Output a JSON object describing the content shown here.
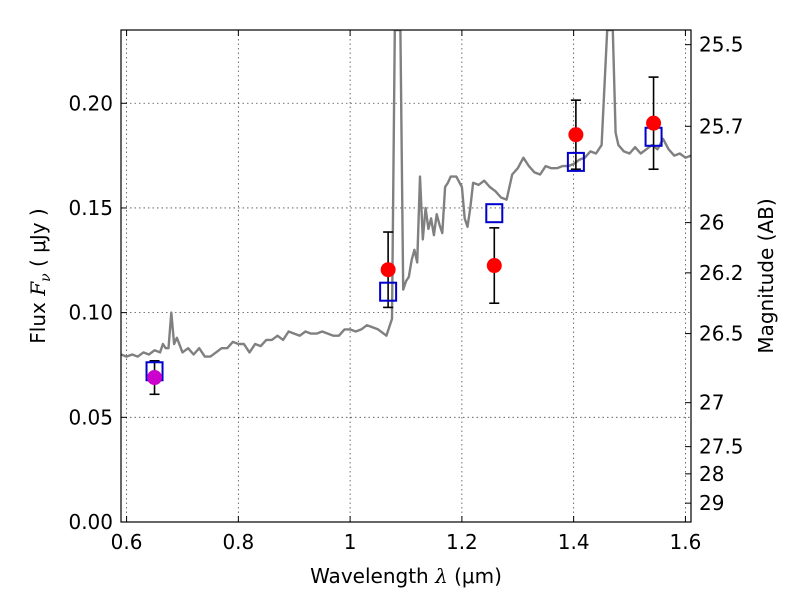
{
  "chart_data": {
    "type": "scatter",
    "title": "",
    "xlabel_text": "Wavelength ",
    "xlabel_symbol": "λ",
    "xlabel_unit": " (μm)",
    "ylabel_text": "Flux ",
    "ylabel_symbol": "F",
    "ylabel_sub": "ν",
    "ylabel_unit": " ( μJy )",
    "y2label": "Magnitude (AB)",
    "xlim": [
      0.59,
      1.61
    ],
    "ylim": [
      0.0,
      0.235
    ],
    "xticks": [
      0.6,
      0.8,
      1.0,
      1.2,
      1.4,
      1.6
    ],
    "xtick_labels": [
      "0.6",
      "0.8",
      "1",
      "1.2",
      "1.4",
      "1.6"
    ],
    "yticks": [
      0.0,
      0.05,
      0.1,
      0.15,
      0.2
    ],
    "ytick_labels": [
      "0.00",
      "0.05",
      "0.10",
      "0.15",
      "0.20"
    ],
    "y2ticks": [
      {
        "label": "25.5",
        "flux": 0.228
      },
      {
        "label": "25.7",
        "flux": 0.189
      },
      {
        "label": "26",
        "flux": 0.143
      },
      {
        "label": "26.2",
        "flux": 0.119
      },
      {
        "label": "26.5",
        "flux": 0.09
      },
      {
        "label": "27",
        "flux": 0.057
      },
      {
        "label": "27.5",
        "flux": 0.036
      },
      {
        "label": "28",
        "flux": 0.023
      },
      {
        "label": "29",
        "flux": 0.009
      }
    ],
    "grid": true,
    "series": [
      {
        "kind": "model-spectrum",
        "color": "#808080",
        "points": [
          [
            0.59,
            0.08
          ],
          [
            0.6,
            0.079
          ],
          [
            0.61,
            0.08
          ],
          [
            0.62,
            0.079
          ],
          [
            0.63,
            0.081
          ],
          [
            0.64,
            0.08
          ],
          [
            0.65,
            0.082
          ],
          [
            0.66,
            0.081
          ],
          [
            0.665,
            0.085
          ],
          [
            0.67,
            0.083
          ],
          [
            0.675,
            0.083
          ],
          [
            0.68,
            0.1
          ],
          [
            0.685,
            0.085
          ],
          [
            0.69,
            0.088
          ],
          [
            0.7,
            0.081
          ],
          [
            0.71,
            0.083
          ],
          [
            0.72,
            0.08
          ],
          [
            0.73,
            0.083
          ],
          [
            0.74,
            0.079
          ],
          [
            0.75,
            0.079
          ],
          [
            0.76,
            0.081
          ],
          [
            0.77,
            0.083
          ],
          [
            0.78,
            0.083
          ],
          [
            0.79,
            0.086
          ],
          [
            0.8,
            0.085
          ],
          [
            0.81,
            0.085
          ],
          [
            0.82,
            0.081
          ],
          [
            0.83,
            0.085
          ],
          [
            0.84,
            0.084
          ],
          [
            0.85,
            0.087
          ],
          [
            0.86,
            0.087
          ],
          [
            0.87,
            0.089
          ],
          [
            0.88,
            0.087
          ],
          [
            0.89,
            0.091
          ],
          [
            0.9,
            0.09
          ],
          [
            0.91,
            0.089
          ],
          [
            0.92,
            0.091
          ],
          [
            0.93,
            0.09
          ],
          [
            0.94,
            0.09
          ],
          [
            0.95,
            0.091
          ],
          [
            0.96,
            0.09
          ],
          [
            0.97,
            0.089
          ],
          [
            0.98,
            0.089
          ],
          [
            0.99,
            0.092
          ],
          [
            1.0,
            0.092
          ],
          [
            1.01,
            0.091
          ],
          [
            1.02,
            0.092
          ],
          [
            1.03,
            0.094
          ],
          [
            1.04,
            0.093
          ],
          [
            1.05,
            0.092
          ],
          [
            1.06,
            0.09
          ],
          [
            1.065,
            0.089
          ],
          [
            1.07,
            0.093
          ],
          [
            1.075,
            0.097
          ],
          [
            1.08,
            0.235
          ],
          [
            1.09,
            0.235
          ],
          [
            1.095,
            0.111
          ],
          [
            1.1,
            0.115
          ],
          [
            1.105,
            0.117
          ],
          [
            1.11,
            0.125
          ],
          [
            1.115,
            0.13
          ],
          [
            1.12,
            0.124
          ],
          [
            1.125,
            0.165
          ],
          [
            1.13,
            0.135
          ],
          [
            1.135,
            0.15
          ],
          [
            1.14,
            0.14
          ],
          [
            1.145,
            0.145
          ],
          [
            1.15,
            0.137
          ],
          [
            1.155,
            0.147
          ],
          [
            1.16,
            0.142
          ],
          [
            1.165,
            0.138
          ],
          [
            1.17,
            0.16
          ],
          [
            1.175,
            0.162
          ],
          [
            1.18,
            0.165
          ],
          [
            1.19,
            0.165
          ],
          [
            1.2,
            0.16
          ],
          [
            1.205,
            0.145
          ],
          [
            1.21,
            0.141
          ],
          [
            1.215,
            0.15
          ],
          [
            1.22,
            0.162
          ],
          [
            1.23,
            0.161
          ],
          [
            1.24,
            0.163
          ],
          [
            1.25,
            0.16
          ],
          [
            1.26,
            0.158
          ],
          [
            1.27,
            0.155
          ],
          [
            1.28,
            0.154
          ],
          [
            1.29,
            0.166
          ],
          [
            1.3,
            0.169
          ],
          [
            1.31,
            0.174
          ],
          [
            1.32,
            0.17
          ],
          [
            1.33,
            0.167
          ],
          [
            1.34,
            0.166
          ],
          [
            1.35,
            0.17
          ],
          [
            1.36,
            0.169
          ],
          [
            1.37,
            0.169
          ],
          [
            1.38,
            0.17
          ],
          [
            1.39,
            0.17
          ],
          [
            1.4,
            0.171
          ],
          [
            1.41,
            0.173
          ],
          [
            1.42,
            0.174
          ],
          [
            1.43,
            0.177
          ],
          [
            1.44,
            0.176
          ],
          [
            1.45,
            0.18
          ],
          [
            1.46,
            0.235
          ],
          [
            1.47,
            0.235
          ],
          [
            1.475,
            0.186
          ],
          [
            1.48,
            0.18
          ],
          [
            1.49,
            0.177
          ],
          [
            1.5,
            0.176
          ],
          [
            1.51,
            0.179
          ],
          [
            1.52,
            0.176
          ],
          [
            1.53,
            0.178
          ],
          [
            1.54,
            0.18
          ],
          [
            1.55,
            0.178
          ],
          [
            1.56,
            0.183
          ],
          [
            1.57,
            0.178
          ],
          [
            1.58,
            0.175
          ],
          [
            1.59,
            0.176
          ],
          [
            1.6,
            0.174
          ],
          [
            1.61,
            0.175
          ]
        ]
      },
      {
        "kind": "model-photometry",
        "marker": "open-square",
        "color": "#0000cc",
        "points": [
          [
            0.65,
            0.072
          ],
          [
            1.068,
            0.11
          ],
          [
            1.258,
            0.1475
          ],
          [
            1.404,
            0.172
          ],
          [
            1.543,
            0.184
          ]
        ]
      },
      {
        "kind": "observed-photometry",
        "marker": "filled-circle",
        "color": "#ff0000",
        "points": [
          {
            "x": 0.65,
            "y": 0.069,
            "err": 0.008,
            "color": "#cc00cc"
          },
          {
            "x": 1.068,
            "y": 0.1205,
            "err": 0.018,
            "color": "#ff0000"
          },
          {
            "x": 1.258,
            "y": 0.1225,
            "err": 0.018,
            "color": "#ff0000"
          },
          {
            "x": 1.404,
            "y": 0.185,
            "err": 0.0165,
            "color": "#ff0000"
          },
          {
            "x": 1.543,
            "y": 0.1905,
            "err": 0.022,
            "color": "#ff0000"
          }
        ]
      }
    ]
  }
}
